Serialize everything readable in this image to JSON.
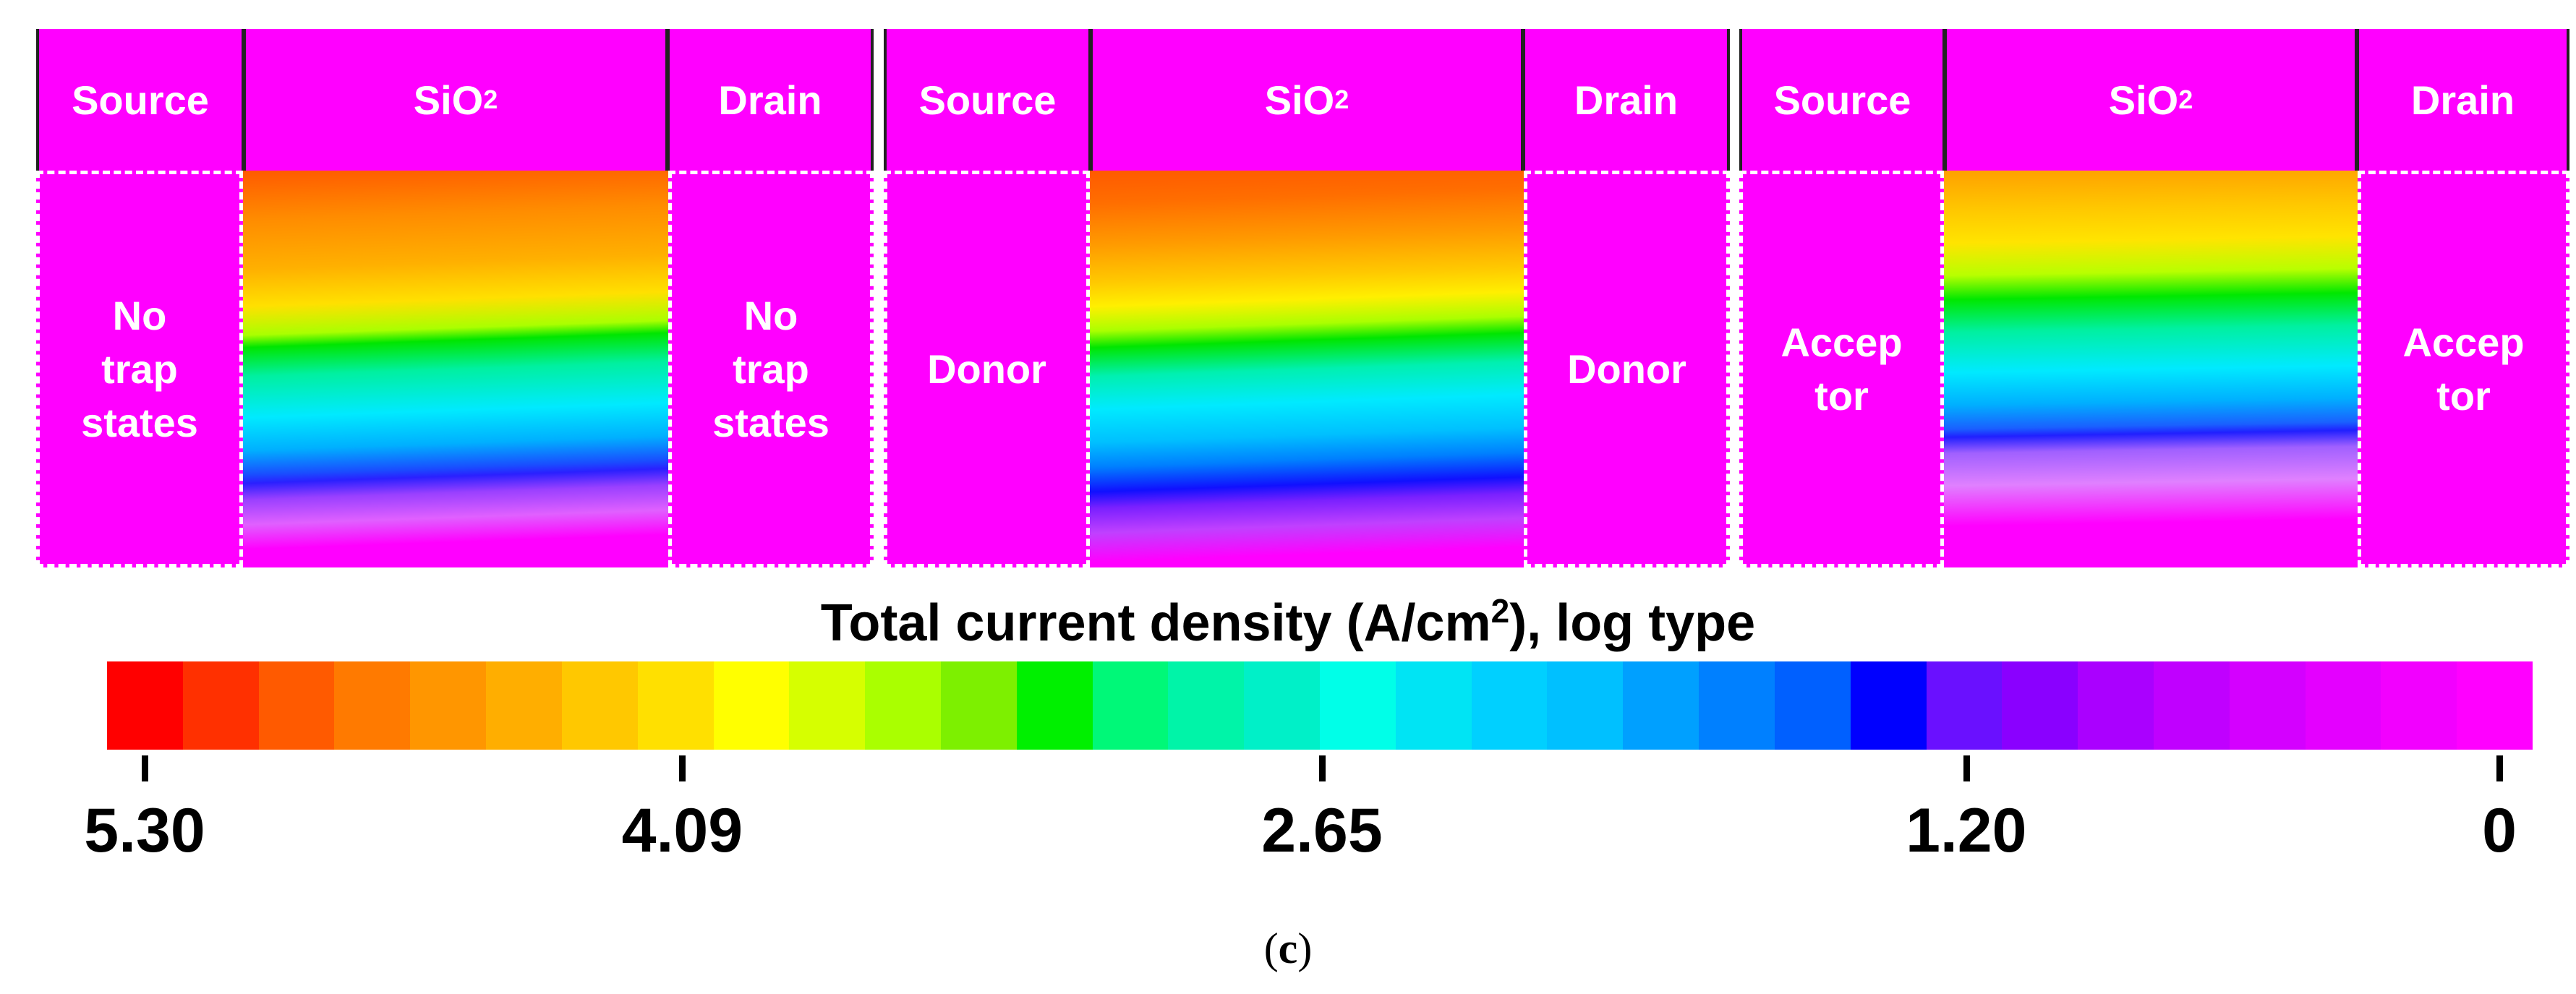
{
  "panels": [
    {
      "header": {
        "source": "Source",
        "oxide": "SiO",
        "oxide_sub": "2",
        "drain": "Drain"
      },
      "source_label": [
        "No",
        "trap",
        "states"
      ],
      "drain_label": [
        "No",
        "trap",
        "states"
      ],
      "trap_type": "No trap states"
    },
    {
      "header": {
        "source": "Source",
        "oxide": "SiO",
        "oxide_sub": "2",
        "drain": "Drain"
      },
      "source_label": [
        "Donor"
      ],
      "drain_label": [
        "Donor"
      ],
      "trap_type": "Donor"
    },
    {
      "header": {
        "source": "Source",
        "oxide": "SiO",
        "oxide_sub": "2",
        "drain": "Drain"
      },
      "source_label": [
        "Accep",
        "tor"
      ],
      "drain_label": [
        "Accep",
        "tor"
      ],
      "trap_type": "Acceptor"
    }
  ],
  "colorbar": {
    "title": "Total current density (A/cm",
    "title_sup": "2",
    "title_tail": "), log type",
    "ticks": [
      "5.30",
      "4.09",
      "2.65",
      "1.20",
      "0"
    ],
    "colors": [
      "#ff0000",
      "#ff3000",
      "#ff5a00",
      "#ff7a00",
      "#ff9600",
      "#ffae00",
      "#ffc800",
      "#ffe000",
      "#ffff00",
      "#d6ff00",
      "#aaff00",
      "#7df000",
      "#00f000",
      "#00f878",
      "#00f4a8",
      "#00f0c8",
      "#00ffe8",
      "#00e4f4",
      "#00d0ff",
      "#00c0ff",
      "#00a0ff",
      "#0080ff",
      "#0060ff",
      "#0000ff",
      "#6a10ff",
      "#8a00ff",
      "#aa00ff",
      "#c000ff",
      "#d400ff",
      "#e400ff",
      "#f200ff",
      "#ff00ff"
    ]
  },
  "chart_data": {
    "type": "heatmap",
    "title": "Total current density (A/cm2), log type",
    "colorbar_range": [
      5.3,
      0
    ],
    "colorbar_ticks": [
      5.3,
      4.09,
      2.65,
      1.2,
      0
    ],
    "panels": [
      "No trap states",
      "Donor",
      "Acceptor"
    ]
  },
  "caption": {
    "open": "(",
    "letter": "c",
    "close": ")"
  }
}
